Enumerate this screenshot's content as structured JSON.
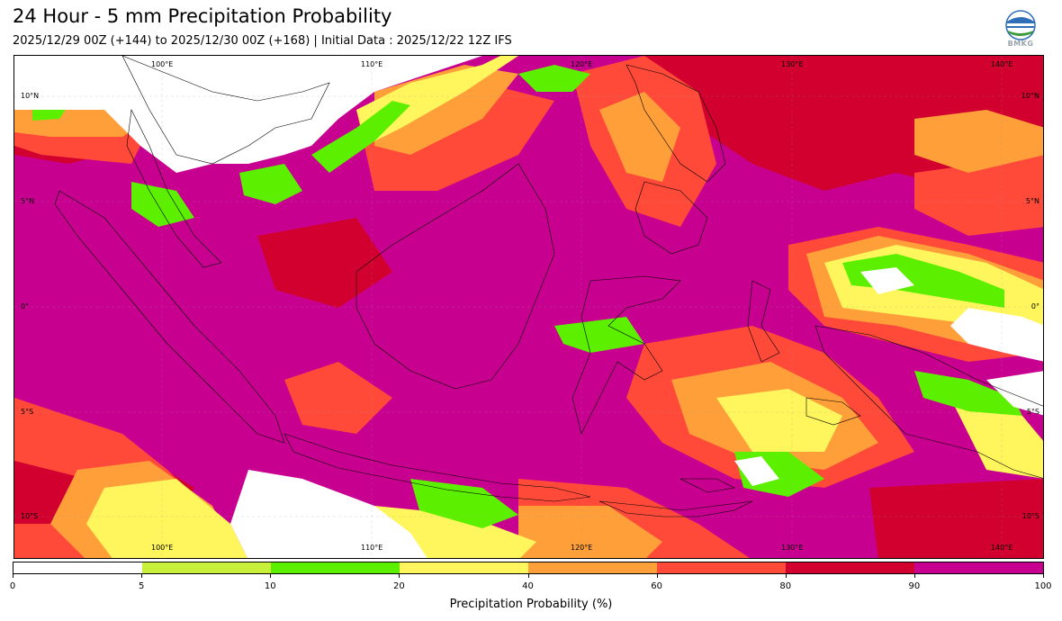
{
  "header": {
    "title": "24 Hour - 5 mm Precipitation Probability",
    "subtitle": "2025/12/29 00Z (+144) to 2025/12/30 00Z (+168) | Initial Data : 2025/12/22 12Z IFS",
    "logo_text": "BMKG"
  },
  "map": {
    "region": "Indonesia maritime continent",
    "lon_labels": [
      "100°E",
      "110°E",
      "120°E",
      "130°E",
      "140°E"
    ],
    "lat_labels": [
      "10°N",
      "5°N",
      "0°",
      "5°S",
      "10°S"
    ],
    "colors": {
      "p0_5": "#ffffff",
      "p5_10": "#c8ef3a",
      "p10_20": "#5cf000",
      "p20_40": "#fff55c",
      "p40_60": "#ff9f3a",
      "p60_80": "#ff4a3a",
      "p80_90": "#d2002e",
      "p90_100": "#c8008f",
      "coast": "#000000"
    }
  },
  "colorbar": {
    "title": "Precipitation Probability (%)",
    "ticks": [
      "0",
      "5",
      "10",
      "20",
      "40",
      "60",
      "80",
      "90",
      "100"
    ],
    "segment_colors": [
      "#ffffff",
      "#c8ef3a",
      "#5cf000",
      "#fff55c",
      "#ff9f3a",
      "#ff4a3a",
      "#d2002e",
      "#c8008f"
    ]
  }
}
